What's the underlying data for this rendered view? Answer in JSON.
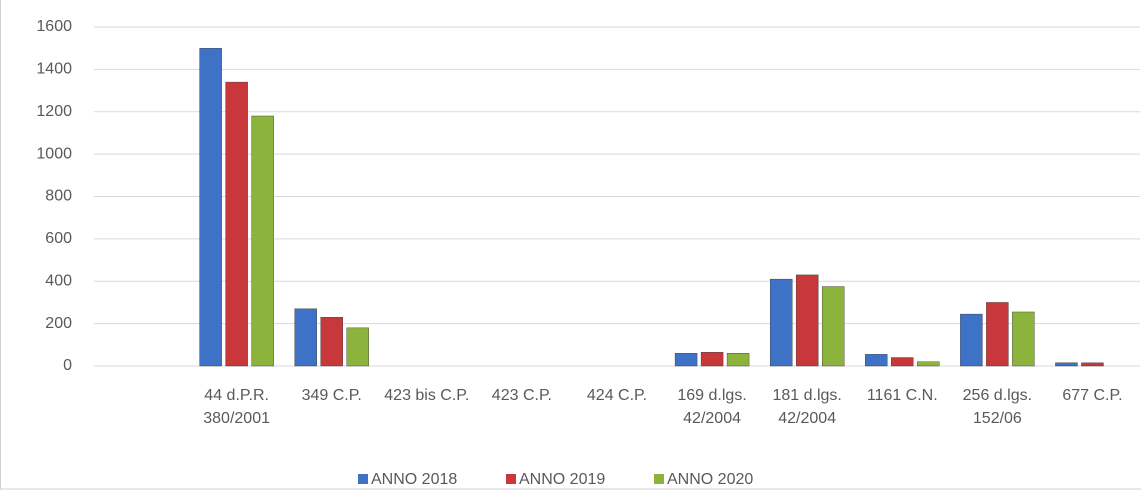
{
  "chart_data": {
    "type": "bar",
    "categories": [
      null,
      "44 d.P.R. 380/2001",
      "349 C.P.",
      "423 bis C.P.",
      "423 C.P.",
      "424 C.P.",
      "169 d.lgs. 42/2004",
      "181 d.lgs. 42/2004",
      "1161 C.N.",
      "256 d.lgs. 152/06",
      "677 C.P."
    ],
    "series": [
      {
        "name": "ANNO 2018",
        "color": "#3d72c6",
        "values": [
          null,
          1500,
          270,
          0,
          0,
          0,
          60,
          410,
          55,
          245,
          15
        ]
      },
      {
        "name": "ANNO 2019",
        "color": "#c8383b",
        "values": [
          null,
          1340,
          230,
          0,
          0,
          0,
          65,
          430,
          40,
          300,
          15
        ]
      },
      {
        "name": "ANNO 2020",
        "color": "#8cb43c",
        "values": [
          null,
          1180,
          180,
          0,
          0,
          0,
          60,
          375,
          20,
          255,
          null
        ]
      }
    ],
    "ylim": [
      0,
      1600
    ],
    "yticks": [
      0,
      200,
      400,
      600,
      800,
      1000,
      1200,
      1400,
      1600
    ],
    "grid": true,
    "legend": "bottom"
  }
}
